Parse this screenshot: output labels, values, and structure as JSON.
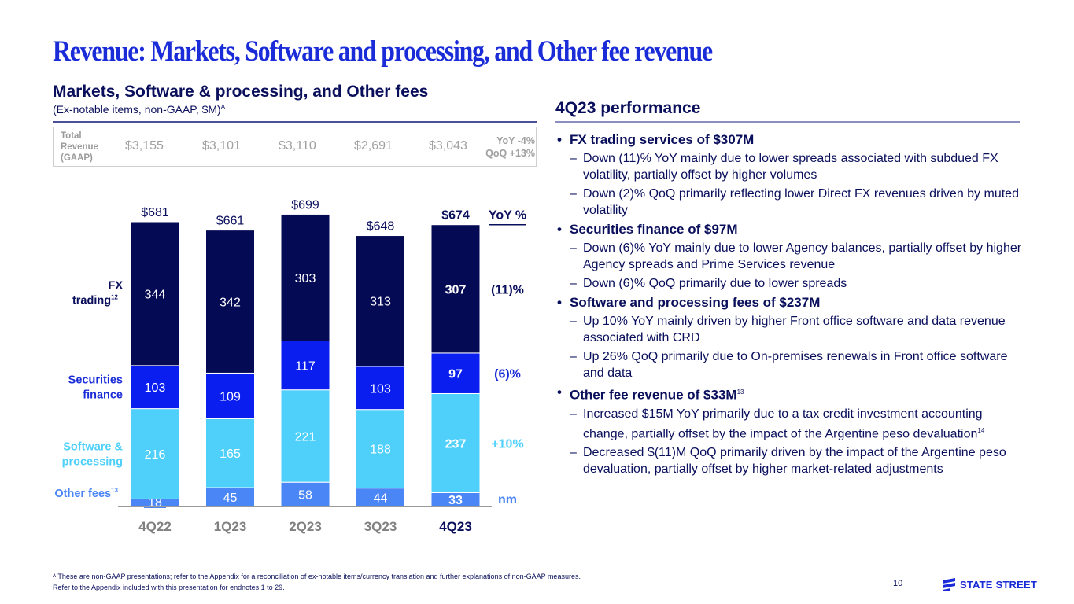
{
  "page": {
    "title": "Revenue: Markets, Software and processing, and Other fee revenue",
    "page_number": "10",
    "logo_text": "STATE STREET"
  },
  "left": {
    "subtitle": "Markets, Software & processing, and Other fees",
    "subnote": "(Ex-notable items, non-GAAP, $M)",
    "subnote_sup": "A",
    "total_revenue": {
      "label_lines": [
        "Total",
        "Revenue",
        "(GAAP)"
      ],
      "values": [
        "$3,155",
        "$3,101",
        "$3,110",
        "$2,691",
        "$3,043"
      ],
      "yoy": "YoY -4%",
      "qoq": "QoQ +13%"
    }
  },
  "chart_data": {
    "type": "bar",
    "stacked": true,
    "categories": [
      "4Q22",
      "1Q23",
      "2Q23",
      "3Q23",
      "4Q23"
    ],
    "highlight_category": "4Q23",
    "series": [
      {
        "name": "Other fees",
        "label_sup": "13",
        "color": "#4a86f5",
        "label_color": "#4a86f5",
        "values": [
          18,
          45,
          58,
          44,
          33
        ],
        "yoy": "nm"
      },
      {
        "name": "Software & processing",
        "color": "#4fd0fb",
        "label_color": "#4fd0fb",
        "values": [
          216,
          165,
          221,
          188,
          237
        ],
        "yoy": "+10%"
      },
      {
        "name": "Securities finance",
        "color": "#0a1ef0",
        "label_color": "#1a2bd8",
        "values": [
          103,
          109,
          117,
          103,
          97
        ],
        "yoy": "(6)%"
      },
      {
        "name": "FX trading",
        "label_sup": "12",
        "color": "#050a55",
        "label_color": "#0a0f5c",
        "values": [
          344,
          342,
          303,
          313,
          307
        ],
        "yoy": "(11)%"
      }
    ],
    "series_label_lines": {
      "Other fees": [
        "Other fees"
      ],
      "Software & processing": [
        "Software &",
        "processing"
      ],
      "Securities finance": [
        "Securities",
        "finance"
      ],
      "FX trading": [
        "FX",
        "trading"
      ]
    },
    "totals": [
      "$681",
      "$661",
      "$699",
      "$648",
      "$674"
    ],
    "yoy_header": "YoY %",
    "title": "",
    "xlabel": "",
    "ylabel": "",
    "ylim": [
      0,
      700
    ],
    "grid": false,
    "legend": "left (inline series labels)"
  },
  "right": {
    "title": "4Q23 performance",
    "sections": [
      {
        "heading": "FX trading services of $307M",
        "sup": "",
        "items": [
          {
            "text": "Down (11)% YoY mainly due to lower spreads associated with subdued FX volatility, partially offset by higher volumes",
            "sup": ""
          },
          {
            "text": "Down (2)% QoQ primarily reflecting lower Direct FX revenues driven by muted volatility",
            "sup": ""
          }
        ]
      },
      {
        "heading": "Securities finance of $97M",
        "sup": "",
        "items": [
          {
            "text": "Down (6)% YoY mainly due to lower Agency balances, partially offset by higher Agency spreads and Prime Services revenue",
            "sup": ""
          },
          {
            "text": "Down (6)% QoQ primarily due to lower spreads",
            "sup": ""
          }
        ]
      },
      {
        "heading": "Software and processing fees of $237M",
        "sup": "",
        "items": [
          {
            "text": "Up 10% YoY mainly driven by higher Front office software and data revenue associated with CRD",
            "sup": ""
          },
          {
            "text": "Up 26% QoQ primarily due to On-premises renewals in Front office software and data",
            "sup": ""
          }
        ]
      },
      {
        "heading": "Other fee revenue of $33M",
        "sup": "13",
        "items": [
          {
            "text": "Increased $15M YoY primarily due to a tax credit investment accounting change, partially offset by the impact of the Argentine peso devaluation",
            "sup": "14"
          },
          {
            "text": "Decreased $(11)M QoQ primarily driven by the impact of the Argentine peso devaluation, partially offset by higher market-related adjustments",
            "sup": ""
          }
        ]
      }
    ]
  },
  "footer": {
    "lines": [
      "ᴬ These are non-GAAP presentations; refer to the Appendix for a reconciliation of ex-notable items/currency translation and further explanations of non-GAAP measures.",
      "Refer to the Appendix included with this presentation for endnotes 1 to 29."
    ]
  }
}
